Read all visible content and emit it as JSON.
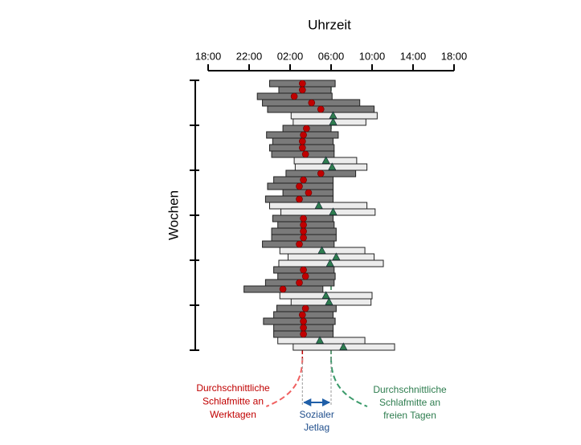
{
  "chart_data": {
    "type": "sleep-timeline",
    "title": "Uhrzeit",
    "y_label": "Wochen",
    "xlim": [
      18,
      42
    ],
    "xticks": [
      {
        "value": 18,
        "label": "18:00"
      },
      {
        "value": 22,
        "label": "22:00"
      },
      {
        "value": 26,
        "label": "02:00"
      },
      {
        "value": 30,
        "label": "06:00"
      },
      {
        "value": 34,
        "label": "10:00"
      },
      {
        "value": 38,
        "label": "14:00"
      },
      {
        "value": 42,
        "label": "18:00"
      }
    ],
    "start": [
      24.0,
      24.9,
      22.8,
      23.3,
      23.8,
      26.1,
      26.3,
      25.3,
      23.7,
      24.3,
      24.0,
      24.2,
      26.4,
      26.5,
      25.6,
      24.4,
      23.8,
      25.3,
      23.6,
      24.0,
      25.1,
      24.3,
      24.8,
      24.2,
      24.2,
      23.3,
      25.0,
      25.8,
      24.9,
      24.4,
      24.8,
      23.6,
      21.5,
      25.0,
      26.1,
      24.7,
      24.4,
      23.4,
      24.4,
      24.4,
      24.8,
      26.3
    ],
    "end": [
      30.4,
      30.0,
      30.1,
      32.8,
      34.2,
      34.5,
      33.4,
      30.0,
      30.7,
      30.2,
      30.3,
      30.3,
      32.5,
      33.5,
      32.4,
      30.2,
      30.2,
      30.2,
      30.2,
      33.5,
      34.3,
      30.2,
      30.3,
      30.5,
      30.5,
      30.3,
      33.3,
      34.2,
      35.1,
      30.3,
      30.4,
      30.3,
      29.2,
      34.0,
      33.9,
      30.5,
      30.2,
      30.4,
      30.2,
      30.2,
      33.3,
      36.2
    ],
    "midpoint": [
      27.2,
      27.2,
      26.4,
      28.1,
      29.0,
      30.2,
      30.2,
      27.6,
      27.3,
      27.2,
      27.2,
      27.5,
      29.5,
      30.1,
      29.0,
      27.3,
      26.9,
      27.8,
      26.9,
      28.8,
      30.2,
      27.3,
      27.3,
      27.3,
      27.3,
      26.9,
      29.1,
      30.5,
      29.9,
      27.3,
      27.5,
      26.9,
      25.3,
      29.5,
      29.8,
      27.5,
      27.2,
      27.3,
      27.3,
      27.3,
      28.9,
      31.2
    ],
    "free_day": [
      false,
      false,
      false,
      false,
      false,
      true,
      true,
      false,
      false,
      false,
      false,
      false,
      true,
      true,
      false,
      false,
      false,
      false,
      false,
      true,
      true,
      false,
      false,
      false,
      false,
      false,
      true,
      true,
      true,
      false,
      false,
      false,
      false,
      true,
      true,
      false,
      false,
      false,
      false,
      false,
      true,
      true
    ],
    "workday_mean": 27.2,
    "freeday_mean": 30.0,
    "workday_color": "#c00000",
    "freeday_color": "#2e7d4f",
    "workday_bar_color": "#7a7a7a",
    "freeday_bar_color": "#ececec",
    "workday_annotation": [
      "Durchschnittliche",
      "Schlafmitte an",
      "Werktagen"
    ],
    "freeday_annotation": [
      "Durchschnittliche",
      "Schlafmitte an",
      "freien Tagen"
    ],
    "jetlag_annotation": [
      "Sozialer",
      "Jetlag"
    ]
  }
}
